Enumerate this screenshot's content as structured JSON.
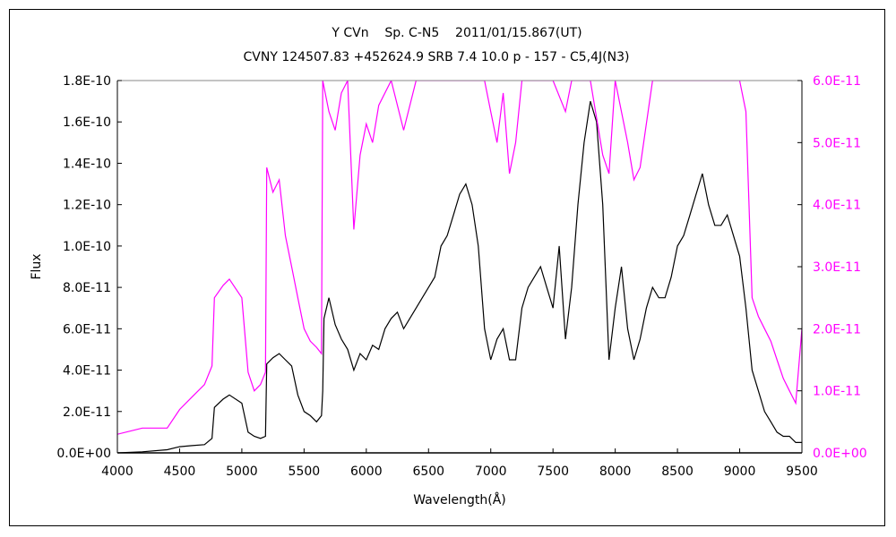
{
  "chart_data": {
    "type": "line",
    "title": "Y CVn    Sp. C-N5    2011/01/15.867(UT)",
    "subtitle": "CVNY 124507.83 +452624.9 SRB 7.4 10.0 p - 157 - C5,4J(N3)",
    "xlabel": "Wavelength(Å)",
    "ylabel": "Flux",
    "xlim": [
      4000,
      9500
    ],
    "ylim_left": [
      0,
      1.8e-10
    ],
    "ylim_right": [
      0,
      6e-11
    ],
    "x_ticks": [
      "4000",
      "4500",
      "5000",
      "5500",
      "6000",
      "6500",
      "7000",
      "7500",
      "8000",
      "8500",
      "9000",
      "9500"
    ],
    "y_ticks_left": [
      "0.0E+00",
      "2.0E-11",
      "4.0E-11",
      "6.0E-11",
      "8.0E-11",
      "1.0E-10",
      "1.2E-10",
      "1.4E-10",
      "1.6E-10",
      "1.8E-10"
    ],
    "y_ticks_right": [
      "0.0E+00",
      "1.0E-11",
      "2.0E-11",
      "3.0E-11",
      "4.0E-11",
      "5.0E-11",
      "6.0E-11"
    ],
    "grid": false,
    "series": [
      {
        "axis": "left",
        "color": "#000000",
        "x": [
          4000,
          4200,
          4400,
          4500,
          4600,
          4700,
          4760,
          4780,
          4850,
          4900,
          5000,
          5050,
          5100,
          5150,
          5190,
          5200,
          5250,
          5300,
          5350,
          5400,
          5450,
          5500,
          5550,
          5600,
          5640,
          5650,
          5660,
          5700,
          5750,
          5800,
          5850,
          5900,
          5950,
          6000,
          6050,
          6100,
          6150,
          6200,
          6250,
          6300,
          6350,
          6400,
          6450,
          6500,
          6550,
          6600,
          6650,
          6700,
          6750,
          6800,
          6850,
          6900,
          6950,
          7000,
          7050,
          7100,
          7150,
          7200,
          7250,
          7300,
          7350,
          7400,
          7450,
          7500,
          7550,
          7600,
          7650,
          7700,
          7750,
          7800,
          7850,
          7900,
          7950,
          8000,
          8050,
          8100,
          8150,
          8200,
          8250,
          8300,
          8350,
          8400,
          8450,
          8500,
          8550,
          8600,
          8650,
          8700,
          8750,
          8800,
          8850,
          8900,
          8950,
          9000,
          9050,
          9100,
          9150,
          9200,
          9250,
          9300,
          9350,
          9400,
          9450,
          9500
        ],
        "y": [
          0,
          0.05,
          0.15,
          0.3,
          0.35,
          0.4,
          0.7,
          2.2,
          2.6,
          2.8,
          2.4,
          1.0,
          0.8,
          0.7,
          0.8,
          4.3,
          4.6,
          4.8,
          4.5,
          4.2,
          2.8,
          2.0,
          1.8,
          1.5,
          1.8,
          3.0,
          6.5,
          7.5,
          6.2,
          5.5,
          5.0,
          4.0,
          4.8,
          4.5,
          5.2,
          5.0,
          6.0,
          6.5,
          6.8,
          6.0,
          6.5,
          7.0,
          7.5,
          8.0,
          8.5,
          10.0,
          10.5,
          11.5,
          12.5,
          13.0,
          12.0,
          10.0,
          6.0,
          4.5,
          5.5,
          6.0,
          4.5,
          4.5,
          7.0,
          8.0,
          8.5,
          9.0,
          8.0,
          7.0,
          10.0,
          5.5,
          8.0,
          12.0,
          15.0,
          17.0,
          16.0,
          12.0,
          4.5,
          7.0,
          9.0,
          6.0,
          4.5,
          5.5,
          7.0,
          8.0,
          7.5,
          7.5,
          8.5,
          10.0,
          10.5,
          11.5,
          12.5,
          13.5,
          12.0,
          11.0,
          11.0,
          11.5,
          10.5,
          9.5,
          7.0,
          4.0,
          3.0,
          2.0,
          1.5,
          1.0,
          0.8,
          0.8,
          0.5,
          0.5
        ],
        "y_scale": 1e-11
      },
      {
        "axis": "right",
        "color": "#FF00FF",
        "x": [
          4000,
          4200,
          4400,
          4500,
          4600,
          4700,
          4760,
          4780,
          4850,
          4900,
          5000,
          5050,
          5100,
          5150,
          5190,
          5200,
          5250,
          5300,
          5350,
          5400,
          5450,
          5500,
          5550,
          5600,
          5640,
          5650,
          5700,
          5750,
          5800,
          5850,
          5900,
          5950,
          6000,
          6050,
          6100,
          6200,
          6300,
          6400,
          6500,
          6700,
          6850,
          6900,
          6950,
          7000,
          7050,
          7100,
          7150,
          7200,
          7250,
          7300,
          7400,
          7500,
          7600,
          7650,
          7700,
          7800,
          7900,
          7950,
          8000,
          8100,
          8150,
          8200,
          8300,
          8400,
          8500,
          8600,
          8700,
          8800,
          8900,
          9000,
          9050,
          9100,
          9150,
          9200,
          9250,
          9300,
          9350,
          9400,
          9450,
          9500
        ],
        "y": [
          0.3,
          0.4,
          0.4,
          0.7,
          0.9,
          1.1,
          1.4,
          2.5,
          2.7,
          2.8,
          2.5,
          1.3,
          1.0,
          1.1,
          1.3,
          4.6,
          4.2,
          4.4,
          3.5,
          3.0,
          2.5,
          2.0,
          1.8,
          1.7,
          1.6,
          6.0,
          5.5,
          5.2,
          5.8,
          6.0,
          3.6,
          4.8,
          5.3,
          5.0,
          5.6,
          6.0,
          5.2,
          6.0,
          6.0,
          6.0,
          6.0,
          6.0,
          6.0,
          5.5,
          5.0,
          5.8,
          4.5,
          5.0,
          6.0,
          6.0,
          6.0,
          6.0,
          5.5,
          6.0,
          6.0,
          6.0,
          4.8,
          4.5,
          6.0,
          5.0,
          4.4,
          4.6,
          6.0,
          6.0,
          6.0,
          6.0,
          6.0,
          6.0,
          6.0,
          6.0,
          5.5,
          2.5,
          2.2,
          2.0,
          1.8,
          1.5,
          1.2,
          1.0,
          0.8,
          2.0
        ],
        "y_scale": 1e-11
      }
    ]
  }
}
